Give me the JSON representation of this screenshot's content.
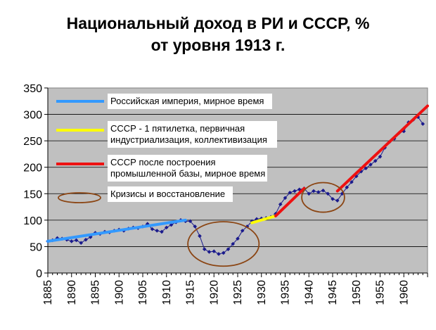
{
  "chart_data": {
    "type": "line",
    "title_line1": "Национальный доход в РИ и СССР, %",
    "title_line2": "от уровня 1913 г.",
    "xlim": [
      1885,
      1965
    ],
    "ylim": [
      0,
      350
    ],
    "x_ticks": [
      "1885",
      "1890",
      "1895",
      "1900",
      "1905",
      "1910",
      "1915",
      "1920",
      "1925",
      "1930",
      "1935",
      "1940",
      "1945",
      "1950",
      "1955",
      "1960"
    ],
    "y_ticks": [
      "0",
      "50",
      "100",
      "150",
      "200",
      "250",
      "300",
      "350"
    ],
    "grid": true,
    "colors": {
      "plot_bg": "#c0c0c0",
      "data": "#1a1a8c",
      "blue": "#3399ff",
      "yellow": "#ffff00",
      "red": "#ee1111",
      "ellipse": "#8b4513"
    },
    "series": {
      "x": [
        1885,
        1886,
        1887,
        1888,
        1889,
        1890,
        1891,
        1892,
        1893,
        1894,
        1895,
        1896,
        1897,
        1898,
        1899,
        1900,
        1901,
        1902,
        1903,
        1904,
        1905,
        1906,
        1907,
        1908,
        1909,
        1910,
        1911,
        1912,
        1913,
        1914,
        1915,
        1916,
        1917,
        1918,
        1919,
        1920,
        1921,
        1922,
        1923,
        1924,
        1925,
        1926,
        1927,
        1928,
        1929,
        1930,
        1931,
        1932,
        1933,
        1934,
        1935,
        1936,
        1937,
        1938,
        1939,
        1940,
        1941,
        1942,
        1943,
        1944,
        1945,
        1946,
        1947,
        1948,
        1949,
        1950,
        1951,
        1952,
        1953,
        1954,
        1955,
        1956,
        1957,
        1958,
        1959,
        1960,
        1961,
        1962,
        1963,
        1964
      ],
      "y": [
        60,
        62,
        66,
        65,
        63,
        60,
        62,
        57,
        63,
        68,
        76,
        74,
        78,
        77,
        80,
        82,
        80,
        84,
        86,
        85,
        88,
        93,
        83,
        80,
        78,
        86,
        91,
        96,
        100,
        98,
        98,
        88,
        70,
        45,
        40,
        41,
        36,
        38,
        45,
        55,
        65,
        80,
        88,
        98,
        102,
        103,
        104,
        106,
        112,
        130,
        142,
        152,
        155,
        158,
        160,
        150,
        155,
        153,
        156,
        150,
        140,
        137,
        150,
        162,
        172,
        183,
        192,
        198,
        205,
        212,
        220,
        237,
        248,
        254,
        265,
        268,
        285,
        290,
        295,
        282
      ]
    },
    "trend_lines": [
      {
        "name": "Российская империя, мирное время",
        "color": "blue",
        "points": [
          [
            1885,
            60
          ],
          [
            1914,
            100
          ]
        ]
      },
      {
        "name": "СССР - 1 пятилетка, первичная индустриализация, коллективизация",
        "color": "yellow",
        "points": [
          [
            1928,
            95
          ],
          [
            1933,
            108
          ]
        ]
      },
      {
        "name": "СССР после построения промышленной базы, мирное время",
        "color": "red",
        "points": [
          [
            1933,
            108
          ],
          [
            1939,
            160
          ]
        ]
      },
      {
        "name": "",
        "color": "red",
        "points": [
          [
            1946,
            155
          ],
          [
            1965,
            316
          ]
        ]
      }
    ],
    "ellipses": [
      {
        "cx": 1922,
        "cy": 55,
        "rx": 7.5,
        "ry": 42
      },
      {
        "cx": 1943,
        "cy": 143,
        "rx": 4.5,
        "ry": 28
      }
    ],
    "legend": [
      {
        "symbol": "line",
        "color": "blue",
        "lines": [
          "Российская империя, мирное время"
        ]
      },
      {
        "symbol": "line",
        "color": "yellow",
        "lines": [
          "СССР - 1 пятилетка, первичная",
          "индустриализация, коллективизация"
        ]
      },
      {
        "symbol": "line",
        "color": "red",
        "lines": [
          "СССР после построения",
          "промышленной базы, мирное время"
        ]
      },
      {
        "symbol": "ellipse",
        "color": "ellipse",
        "lines": [
          "Кризисы и восстановление"
        ]
      }
    ]
  }
}
